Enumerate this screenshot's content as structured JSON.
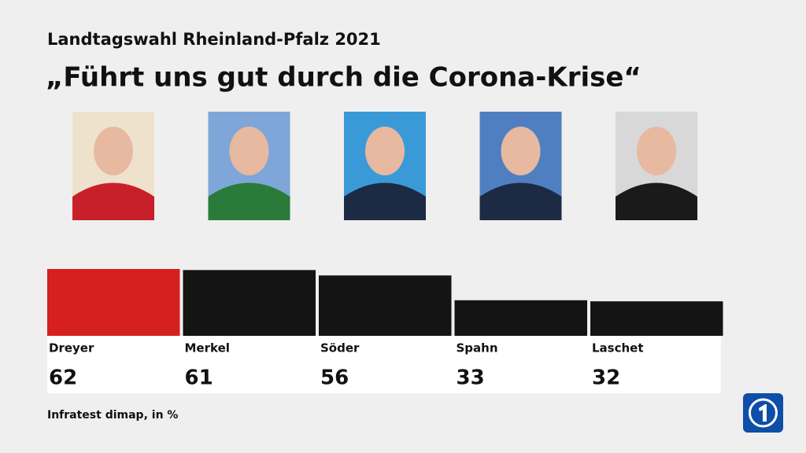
{
  "chart_data": {
    "type": "bar",
    "title": "Landtagswahl Rheinland-Pfalz 2021",
    "subtitle": "„Führt uns gut durch die Corona-Krise“",
    "categories": [
      "Dreyer",
      "Merkel",
      "Söder",
      "Spahn",
      "Laschet"
    ],
    "values": [
      62,
      61,
      56,
      33,
      32
    ],
    "colors": [
      "#d61f1f",
      "#141414",
      "#141414",
      "#141414",
      "#141414"
    ],
    "source": "Infratest dimap, in %"
  }
}
